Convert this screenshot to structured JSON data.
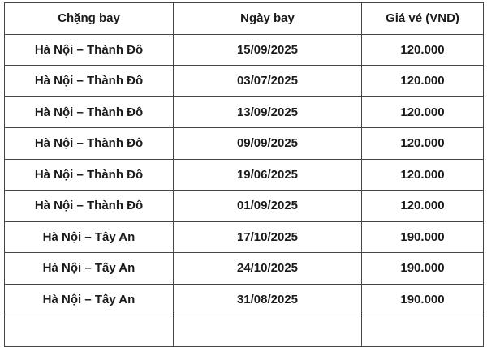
{
  "table": {
    "headers": [
      "Chặng bay",
      "Ngày bay",
      "Giá vé (VND)"
    ],
    "rows": [
      [
        "Hà Nội – Thành Đô",
        "15/09/2025",
        "120.000"
      ],
      [
        "Hà Nội – Thành Đô",
        "03/07/2025",
        "120.000"
      ],
      [
        "Hà Nội – Thành Đô",
        "13/09/2025",
        "120.000"
      ],
      [
        "Hà Nội – Thành Đô",
        "09/09/2025",
        "120.000"
      ],
      [
        "Hà Nội – Thành Đô",
        "19/06/2025",
        "120.000"
      ],
      [
        "Hà Nội – Thành Đô",
        "01/09/2025",
        "120.000"
      ],
      [
        "Hà Nội – Tây An",
        "17/10/2025",
        "190.000"
      ],
      [
        "Hà Nội – Tây An",
        "24/10/2025",
        "190.000"
      ],
      [
        "Hà Nội – Tây An",
        "31/08/2025",
        "190.000"
      ]
    ]
  }
}
